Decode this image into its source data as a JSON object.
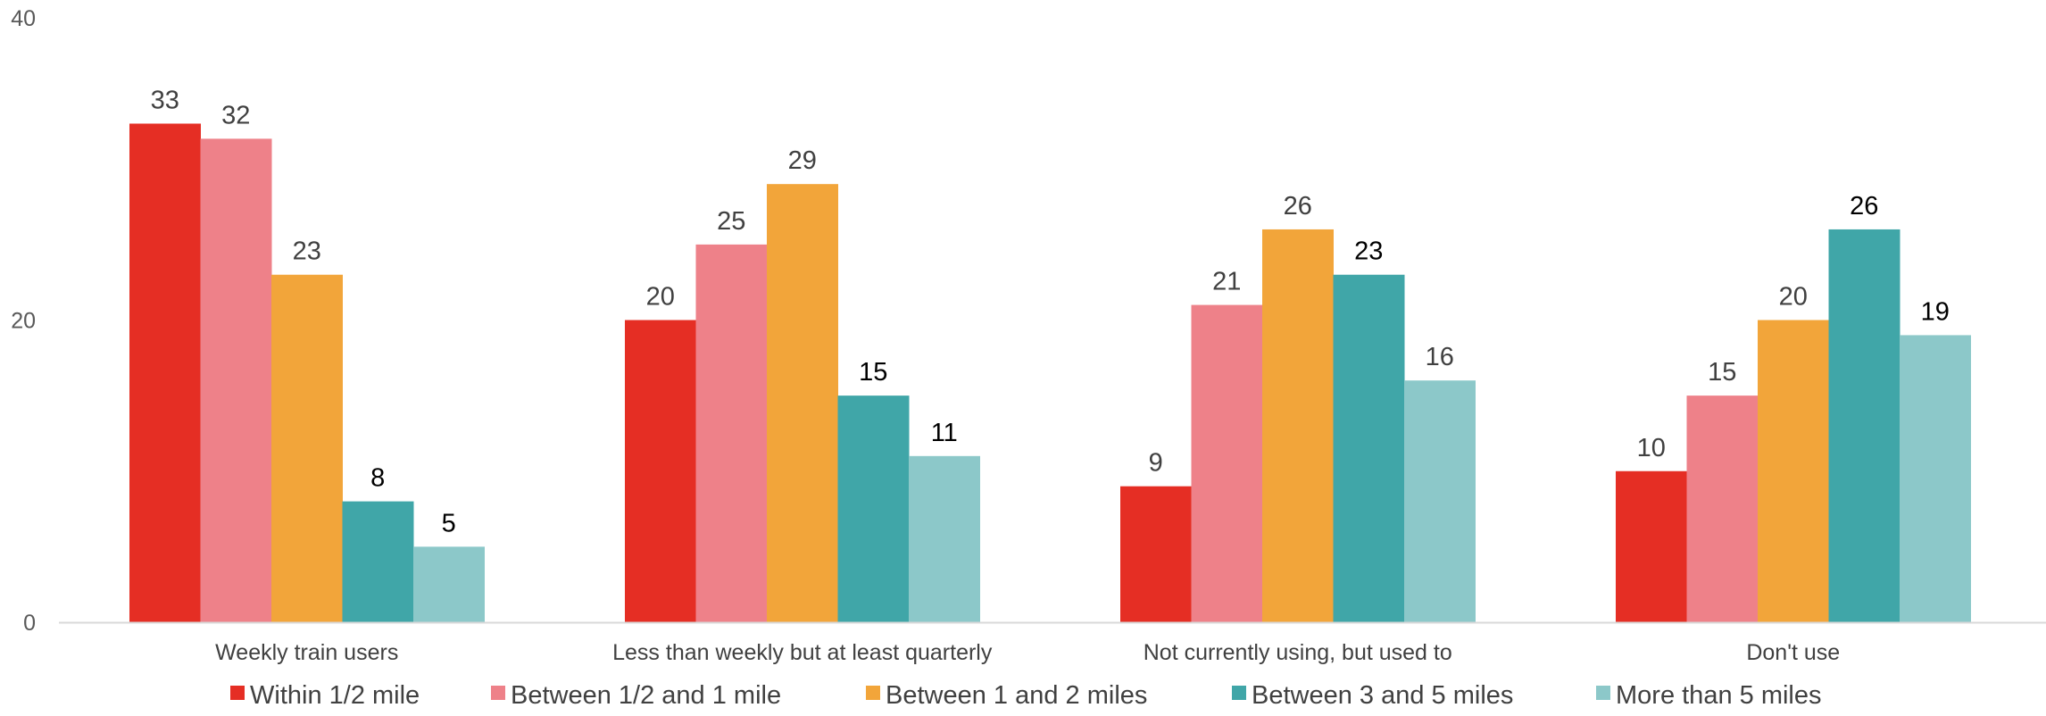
{
  "chart_data": {
    "type": "bar",
    "title": "",
    "xlabel": "",
    "ylabel": "",
    "ylim": [
      0,
      40
    ],
    "yticks": [
      0,
      20,
      40
    ],
    "grid": false,
    "legend_position": "bottom",
    "categories": [
      "Weekly train users",
      "Less than weekly but at least quarterly",
      "Not currently using, but used to",
      "Don't use"
    ],
    "series": [
      {
        "name": "Within 1/2 mile",
        "color": "#E52E24",
        "values": [
          33,
          20,
          9,
          10
        ]
      },
      {
        "name": "Between 1/2 and 1 mile",
        "color": "#EE8189",
        "values": [
          32,
          25,
          21,
          15
        ]
      },
      {
        "name": "Between 1 and 2 miles",
        "color": "#F2A53A",
        "values": [
          23,
          29,
          26,
          20
        ]
      },
      {
        "name": "Between 3 and 5 miles",
        "color": "#40A6A8",
        "values": [
          8,
          15,
          23,
          26
        ]
      },
      {
        "name": "More than 5 miles",
        "color": "#8CC8C9",
        "values": [
          5,
          11,
          16,
          19
        ]
      }
    ]
  }
}
